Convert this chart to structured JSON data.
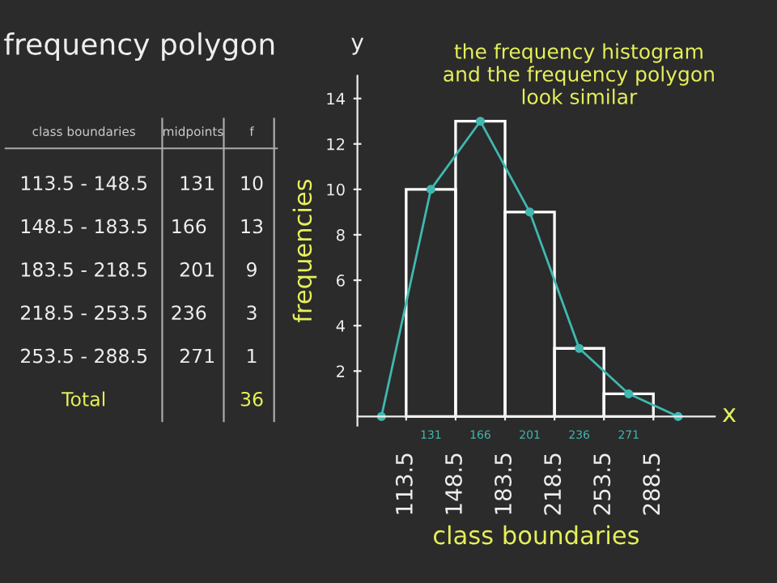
{
  "chart_data": [
    {
      "type": "other",
      "title": "frequency polygon",
      "annotations": [
        "class boundaries",
        "midpoints",
        "f",
        "113.5 - 148.5",
        "131",
        "10",
        "148.5 - 183.5",
        "166",
        "13",
        "183.5 - 218.5",
        "201",
        "9",
        "218.5 - 253.5",
        "236",
        "3",
        "253.5 - 288.5",
        "271",
        "1",
        "Total",
        null,
        "36"
      ]
    },
    {
      "type": "histogram",
      "xlabel": "class boundaries",
      "ylabel": "frequencies",
      "bins": [
        113.5,
        148.5,
        183.5,
        218.5,
        253.5,
        288.5
      ],
      "values": [
        10,
        13,
        9,
        3,
        1
      ],
      "color": "#ffffff",
      "series": [
        {
          "type": "line",
          "color": "#3fb8b0",
          "x": [
            96,
            131,
            166,
            201,
            236,
            271,
            306
          ],
          "values": [
            0,
            10,
            13,
            9,
            3,
            1,
            0
          ]
        }
      ],
      "marker": "circle",
      "xlim": [
        79,
        332
      ],
      "ylim": [
        -0.4,
        15
      ],
      "xticks": [
        113.5,
        148.5,
        183.5,
        218.5,
        253.5,
        288.5
      ],
      "x2ticks": [
        131,
        166,
        201,
        236,
        271
      ],
      "x2lim": [
        79,
        332
      ],
      "yticks": [
        2,
        4,
        6,
        8,
        10,
        12,
        14
      ],
      "grid": false,
      "legend": false,
      "annotations": [
        "the frequency histogram\nand the frequency polygon\nlook similar",
        "x",
        "y"
      ]
    }
  ]
}
